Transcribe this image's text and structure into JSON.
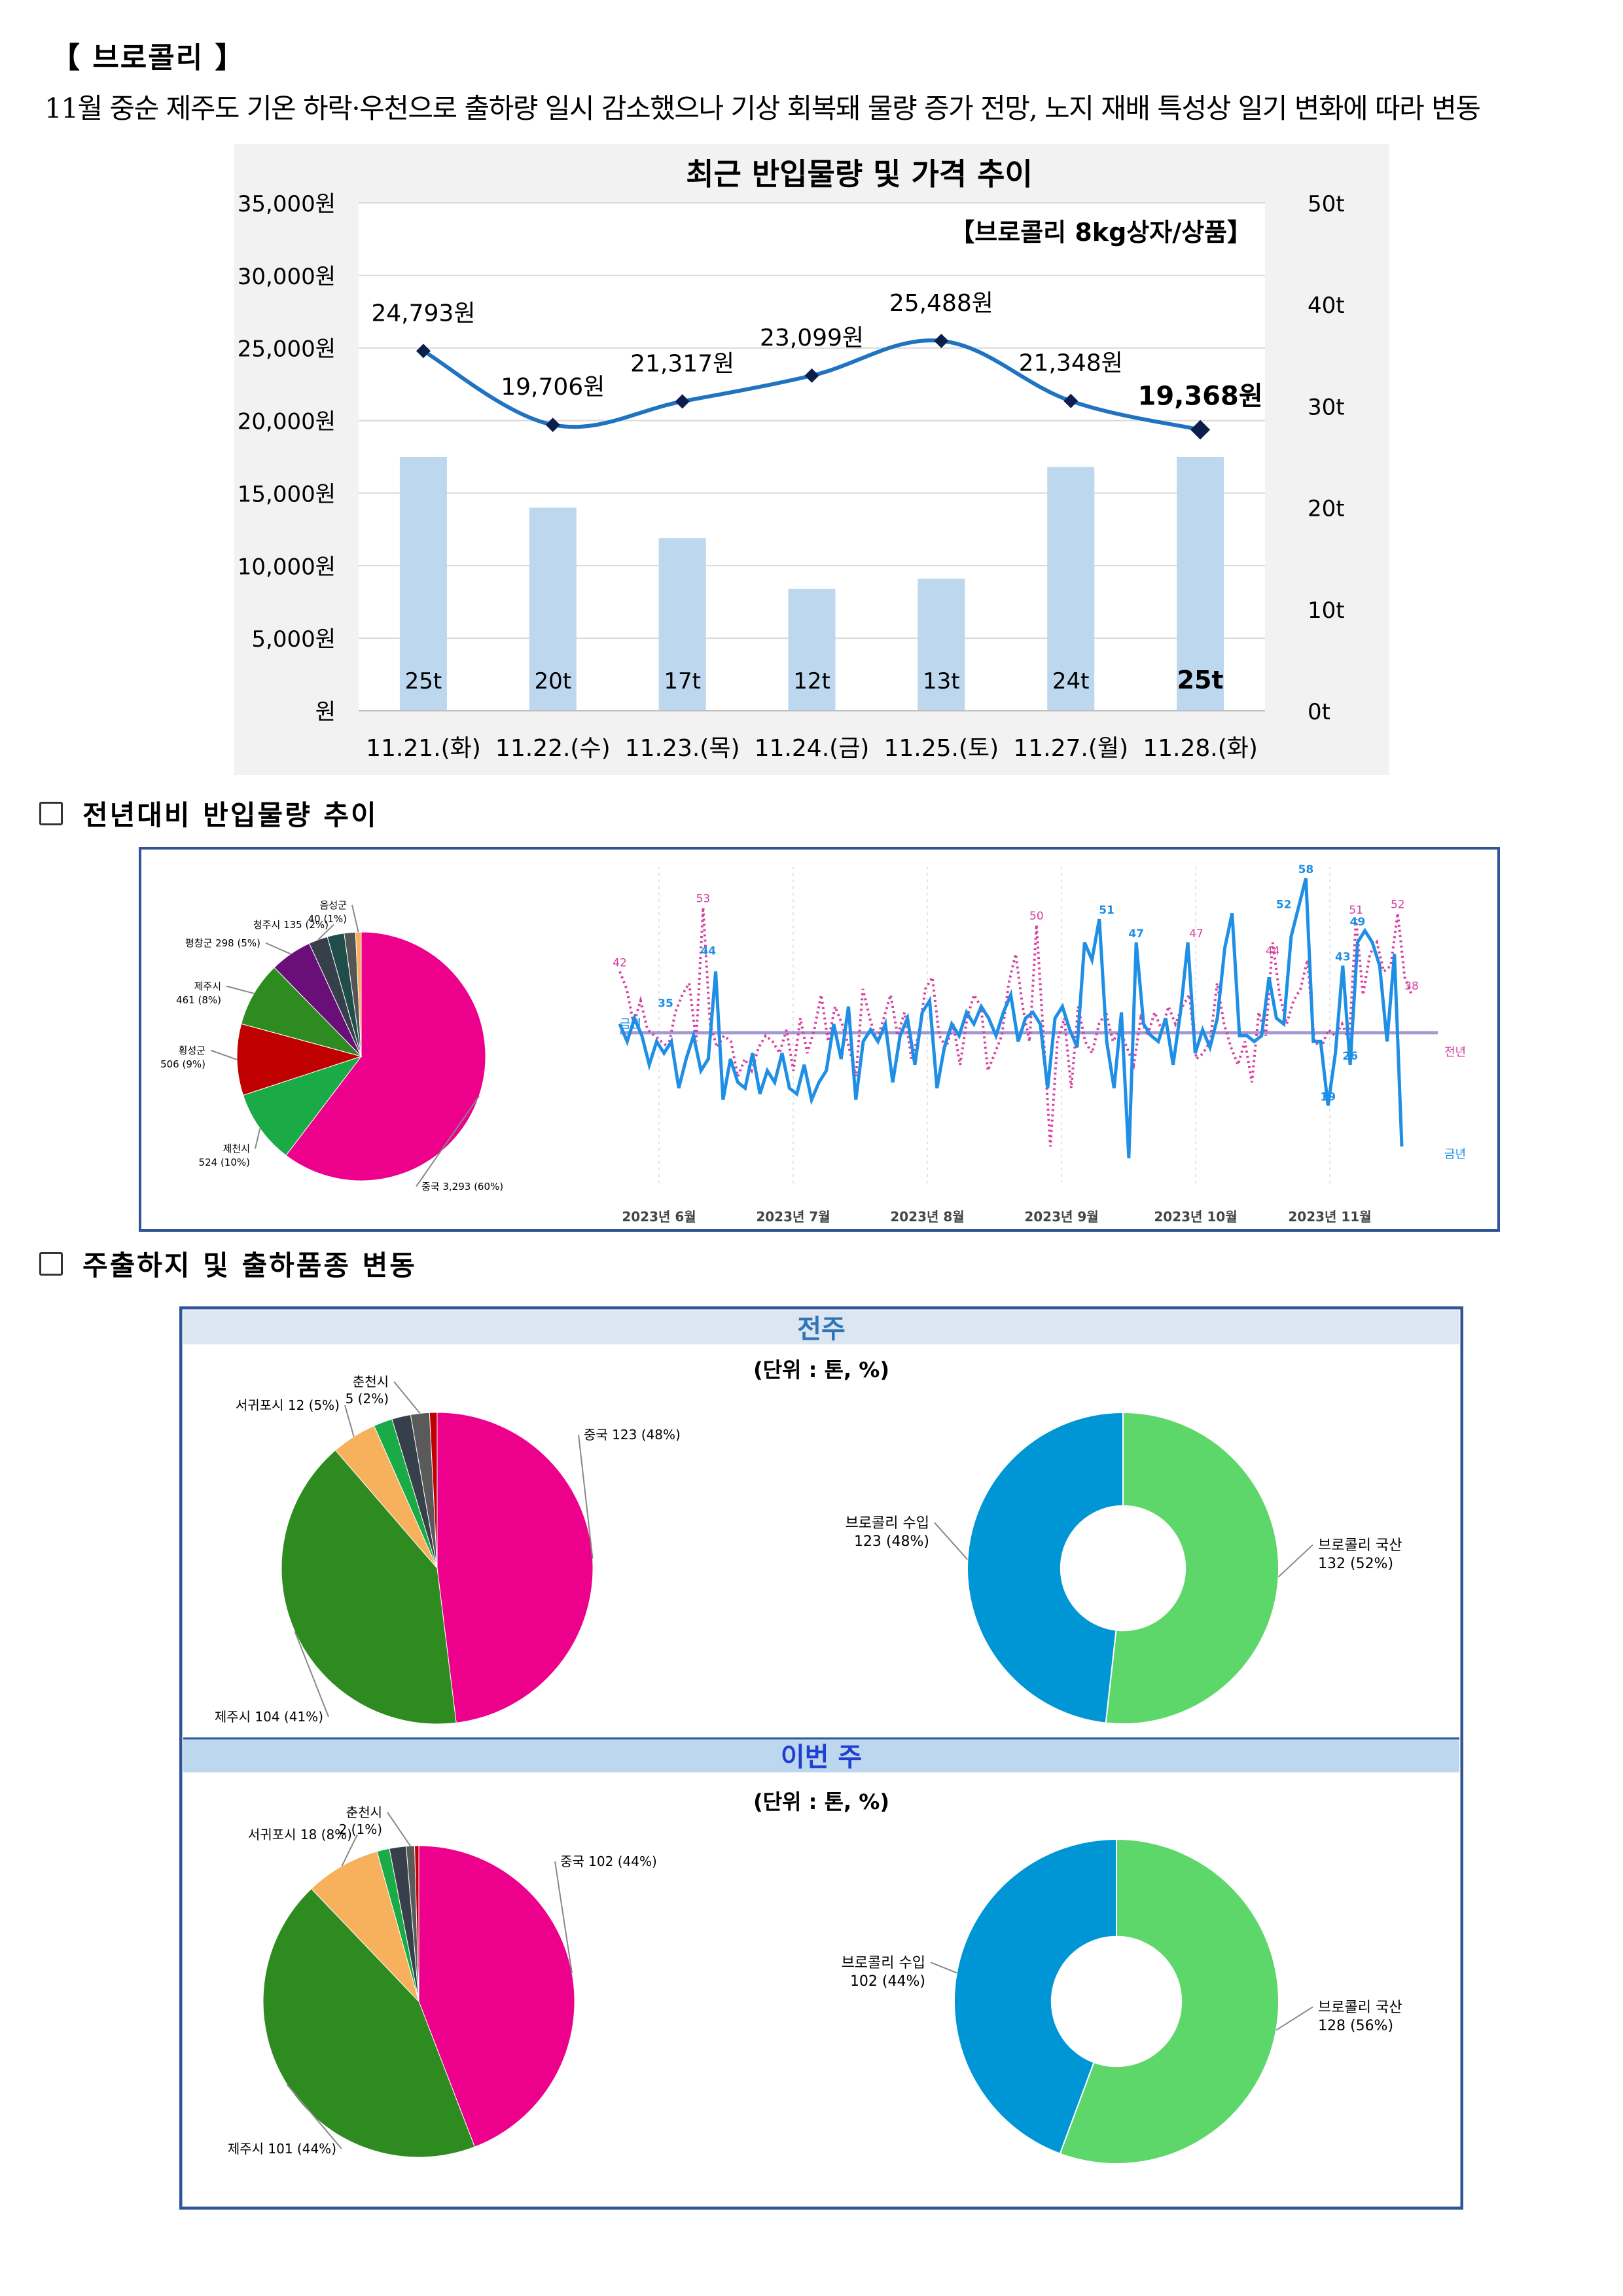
{
  "page": {
    "title": "【 브로콜리 】",
    "summary": "11월 중순 제주도 기온 하락·우천으로 출하량 일시 감소했으나 기상 회복돼 물량 증가 전망, 노지 재배 특성상 일기 변화에 따라 변동",
    "section1_title": "전년대비 반입물량 추이",
    "section2_title": "주출하지 및 출하품종 변동"
  },
  "colors": {
    "price_line": "#1f73c1",
    "volume_bar": "#bdd7ee",
    "pink": "#ec008c",
    "dark_green": "#2e8b1f",
    "mid_green": "#1aaa46",
    "red": "#c00000",
    "purple": "#6a0f7a",
    "orange": "#f7b05b",
    "dark_gray": "#37404a",
    "domestic_green": "#5dd66a",
    "import_blue": "#0096d6",
    "this_year_line": "#1f8fe6",
    "last_year_line": "#d63fa0",
    "frame_blue": "#2f5597"
  },
  "chart_data": [
    {
      "type": "bar+line",
      "title": "최근 반입물량 및 가격 추이",
      "subtitle": "【브로콜리 8kg상자/상품】",
      "categories": [
        "11.21.(화)",
        "11.22.(수)",
        "11.23.(목)",
        "11.24.(금)",
        "11.25.(토)",
        "11.27.(월)",
        "11.28.(화)"
      ],
      "series": [
        {
          "kind": "line",
          "axis": "left",
          "values": [
            24793,
            19706,
            21317,
            23099,
            25488,
            21348,
            19368
          ],
          "labels": [
            "24,793원",
            "19,706원",
            "21,317원",
            "23,099원",
            "25,488원",
            "21,348원",
            "19,368원"
          ]
        },
        {
          "kind": "bar",
          "axis": "right",
          "values": [
            25,
            20,
            17,
            12,
            13,
            24,
            25
          ],
          "labels": [
            "25t",
            "20t",
            "17t",
            "12t",
            "13t",
            "24t",
            "25t"
          ]
        }
      ],
      "left_axis": {
        "ylim": [
          0,
          35000
        ],
        "ticks": [
          "원",
          "5,000원",
          "10,000원",
          "15,000원",
          "20,000원",
          "25,000원",
          "30,000원",
          "35,000원"
        ]
      },
      "right_axis": {
        "ylim": [
          0,
          50
        ],
        "ticks": [
          "0t",
          "10t",
          "20t",
          "30t",
          "40t",
          "50t"
        ]
      },
      "grid": true
    },
    {
      "type": "pie",
      "slices": [
        {
          "label": "중국 3,293 (60%)",
          "value": 3293
        },
        {
          "label": "제천시 524 (10%)",
          "value": 524
        },
        {
          "label": "횡성군 506 (9%)",
          "value": 506
        },
        {
          "label": "제주시 461 (8%)",
          "value": 461
        },
        {
          "label": "평창군 298 (5%)",
          "value": 298
        },
        {
          "label": "청주시 135 (2%)",
          "value": 135
        },
        {
          "label": "",
          "value": 120
        },
        {
          "label": "",
          "value": 80
        },
        {
          "label": "음성군 40 (1%)",
          "value": 40
        }
      ]
    },
    {
      "type": "line",
      "x_ticks": [
        "2023년 6월",
        "2023년 7월",
        "2023년 8월",
        "2023년 9월",
        "2023년 10월",
        "2023년 11월"
      ],
      "series": [
        {
          "name": "금년",
          "values": [
            33,
            30,
            34,
            31,
            26,
            30,
            28,
            30,
            22,
            27,
            31,
            25,
            27,
            42,
            20,
            27,
            23,
            22,
            28,
            21,
            25,
            23,
            28,
            22,
            21,
            26,
            20,
            23,
            25,
            33,
            27,
            36,
            20,
            30,
            32,
            30,
            33,
            23,
            31,
            34,
            26,
            35,
            37,
            22,
            29,
            33,
            31,
            35,
            33,
            36,
            34,
            31,
            35,
            38,
            30,
            34,
            35,
            33,
            22,
            34,
            36,
            32,
            29,
            47,
            44,
            51,
            30,
            22,
            35,
            10,
            47,
            33,
            31,
            30,
            34,
            26,
            35,
            47,
            28,
            32,
            29,
            34,
            46,
            52,
            31,
            31,
            30,
            31,
            41,
            34,
            33,
            48,
            53,
            58,
            30,
            30,
            19,
            28,
            43,
            26,
            47,
            49,
            47,
            43,
            30,
            45,
            12
          ],
          "annotations": [
            "35",
            "44",
            "51",
            "47",
            "52",
            "58",
            "43",
            "49",
            "26",
            "19"
          ]
        },
        {
          "name": "전년",
          "values": [
            42,
            39,
            33,
            37,
            32,
            31,
            30,
            29,
            35,
            38,
            40,
            30,
            53,
            33,
            29,
            31,
            30,
            24,
            27,
            25,
            29,
            31,
            30,
            28,
            32,
            25,
            34,
            28,
            32,
            38,
            30,
            36,
            33,
            29,
            24,
            39,
            34,
            30,
            34,
            38,
            31,
            35,
            27,
            31,
            39,
            41,
            31,
            29,
            33,
            26,
            34,
            38,
            36,
            25,
            28,
            31,
            40,
            45,
            36,
            30,
            50,
            31,
            12,
            30,
            34,
            22,
            36,
            30,
            28,
            33,
            35,
            30,
            32,
            29,
            26,
            34,
            31,
            35,
            32,
            36,
            33,
            36,
            38,
            27,
            28,
            30,
            40,
            33,
            29,
            26,
            30,
            23,
            35,
            31,
            47,
            38,
            33,
            37,
            39,
            44,
            30,
            29,
            32,
            31,
            33,
            30,
            51,
            38,
            45,
            47,
            42,
            43,
            52,
            41,
            38
          ],
          "annotations": [
            "42",
            "53",
            "50",
            "47",
            "44",
            "51",
            "52",
            "38"
          ]
        }
      ]
    },
    {
      "type": "pie",
      "panel": "전주",
      "unit": "(단위 : 톤, %)",
      "slices": [
        {
          "label": "중국 123 (48%)",
          "value": 123
        },
        {
          "label": "제주시 104 (41%)",
          "value": 104
        },
        {
          "label": "서귀포시 12 (5%)",
          "value": 12
        },
        {
          "label": "",
          "value": 5
        },
        {
          "label": "",
          "value": 5
        },
        {
          "label": "춘천시 5 (2%)",
          "value": 5
        },
        {
          "label": "",
          "value": 2
        }
      ]
    },
    {
      "type": "pie",
      "panel": "전주",
      "slices": [
        {
          "label": "브로콜리 국산 132 (52%)",
          "value": 132
        },
        {
          "label": "브로콜리 수입 123 (48%)",
          "value": 123
        }
      ]
    },
    {
      "type": "pie",
      "panel": "이번 주",
      "unit": "(단위 : 톤, %)",
      "slices": [
        {
          "label": "중국 102 (44%)",
          "value": 102
        },
        {
          "label": "제주시 101 (44%)",
          "value": 101
        },
        {
          "label": "서귀포시 18 (8%)",
          "value": 18
        },
        {
          "label": "",
          "value": 3
        },
        {
          "label": "",
          "value": 4
        },
        {
          "label": "춘천시 2 (1%)",
          "value": 2
        },
        {
          "label": "",
          "value": 1
        }
      ]
    },
    {
      "type": "pie",
      "panel": "이번 주",
      "slices": [
        {
          "label": "브로콜리 국산 128 (56%)",
          "value": 128
        },
        {
          "label": "브로콜리 수입 102 (44%)",
          "value": 102
        }
      ]
    }
  ]
}
